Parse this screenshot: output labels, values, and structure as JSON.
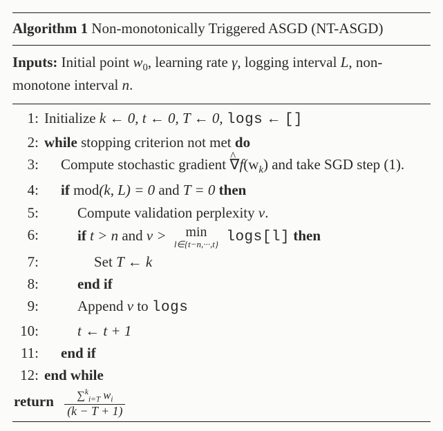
{
  "colors": {
    "text": "#2a2a2a",
    "rule": "#1a1a1a",
    "background": "#fbfbfa"
  },
  "typography": {
    "font_family": "Times New Roman",
    "mono_family": "Courier New",
    "base_fontsize_pt": 16
  },
  "algorithm": {
    "number": "1",
    "label": "Algorithm",
    "title": "Non-monotonically Triggered ASGD (NT-ASGD)",
    "inputs_label": "Inputs:",
    "inputs_text_1": "Initial point ",
    "inputs_w0": "w",
    "inputs_w0_sub": "0",
    "inputs_text_2": ", learning rate ",
    "inputs_gamma": "γ",
    "inputs_text_3": ", logging interval ",
    "inputs_L": "L",
    "inputs_text_4": ", non-monotone interval ",
    "inputs_n": "n",
    "inputs_text_5": ".",
    "steps": {
      "s1": {
        "num": "1:",
        "text_1": "Initialize ",
        "math": "k ← 0, t ← 0, T ← 0, ",
        "logs": "logs",
        "arrow": " ← ",
        "empty": "[]"
      },
      "s2": {
        "num": "2:",
        "kw1": "while",
        "text": " stopping criterion not met ",
        "kw2": "do"
      },
      "s3": {
        "num": "3:",
        "text_1": "Compute stochastic gradient ",
        "grad": "∇",
        "f": "f",
        "arg": "(w",
        "arg_sub": "k",
        "arg_close": ")",
        "text_2": " and take SGD step (1)."
      },
      "s4": {
        "num": "4:",
        "kw1": "if",
        "mod": " mod",
        "args": "(k, L) = 0",
        "and": " and ",
        "cond2": "T = 0",
        "kw2": " then"
      },
      "s5": {
        "num": "5:",
        "text": "Compute validation perplexity ",
        "v": "v",
        "dot": "."
      },
      "s6": {
        "num": "6:",
        "kw1": "if",
        "cond1": " t > n",
        "and": " and ",
        "cond2_l": "v > ",
        "min_top": "min",
        "min_bot": "l∈{t−n,···,t}",
        "logs": "logs",
        "idx": "[l]",
        "kw2": " then"
      },
      "s7": {
        "num": "7:",
        "text": "Set ",
        "math": "T ← k"
      },
      "s8": {
        "num": "8:",
        "kw": "end if"
      },
      "s9": {
        "num": "9:",
        "text_1": "Append ",
        "v": "v",
        "text_2": " to ",
        "logs": "logs"
      },
      "s10": {
        "num": "10:",
        "math": "t ← t + 1"
      },
      "s11": {
        "num": "11:",
        "kw": "end if"
      },
      "s12": {
        "num": "12:",
        "kw": "end while"
      }
    },
    "return_label": "return",
    "return_num_sum": "∑",
    "return_num_sub": "i=T",
    "return_num_sup": "k",
    "return_num_body": " w",
    "return_num_body_sub": "i",
    "return_den": "(k − T + 1)"
  }
}
